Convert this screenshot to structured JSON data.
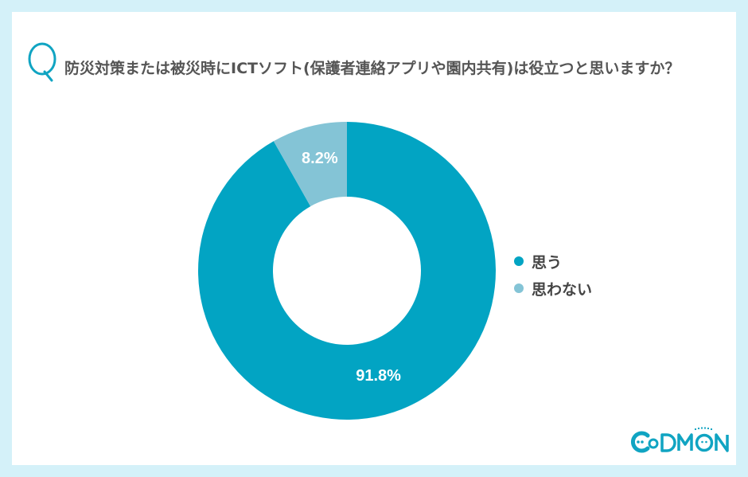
{
  "page": {
    "background_color": "#d4f1f9",
    "card_color": "#ffffff"
  },
  "question": {
    "mark": "Q",
    "text": "防災対策または被災時にICTソフト(保護者連絡アプリや園内共有)は役立つと思いますか？",
    "mark_color": "#10a4c2",
    "text_color": "#555555"
  },
  "chart_data": {
    "type": "pie",
    "variant": "donut",
    "title": "防災対策または被災時にICTソフト(保護者連絡アプリや園内共有)は役立つと思いますか？",
    "categories": [
      "思う",
      "思わない"
    ],
    "values": [
      91.8,
      8.2
    ],
    "unit": "%",
    "data_labels": [
      "91.8%",
      "8.2%"
    ],
    "colors": [
      "#02a4c3",
      "#84c4d6"
    ],
    "start_angle_deg": 0,
    "direction": "clockwise",
    "legend_position": "right",
    "xlabel": "",
    "ylabel": ""
  },
  "legend": {
    "items": [
      {
        "label": "思う",
        "color": "#02a4c3"
      },
      {
        "label": "思わない",
        "color": "#84c4d6"
      }
    ]
  },
  "logo": {
    "text": "CODMON",
    "tagline": "コドモン",
    "color": "#10a4c2"
  }
}
